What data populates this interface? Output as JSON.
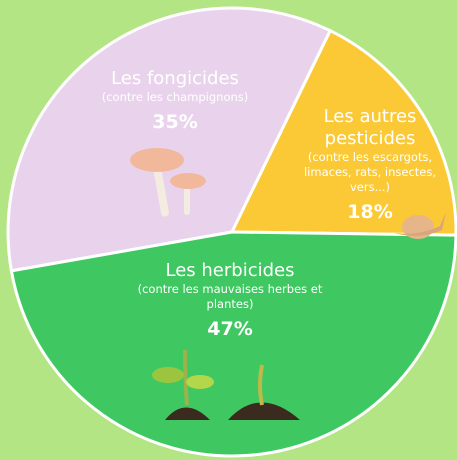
{
  "chart_data": {
    "type": "pie",
    "categories": [
      "Les fongicides",
      "Les autres pesticides",
      "Les herbicides"
    ],
    "descriptions": [
      "(contre les champignons)",
      "(contre les escargots, limaces, rats, insectes, vers...)",
      "(contre les mauvaises herbes et plantes)"
    ],
    "values": [
      35,
      18,
      47
    ],
    "value_labels": [
      "35%",
      "18%",
      "47%"
    ],
    "colors": [
      "#e9d3ec",
      "#fbc935",
      "#3fc862"
    ]
  }
}
